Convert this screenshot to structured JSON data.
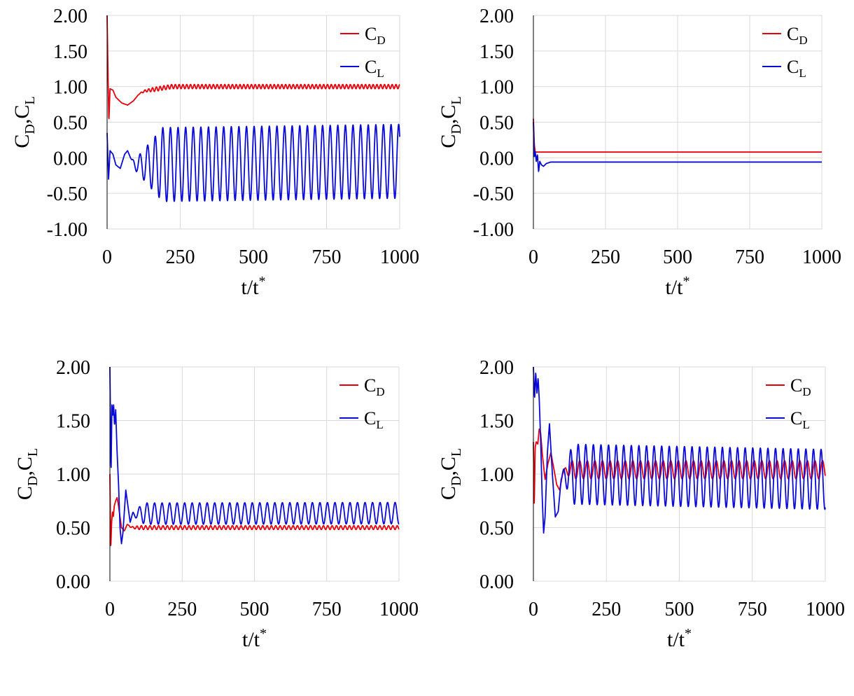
{
  "figure": {
    "colors": {
      "drag": "#e8000b",
      "lift": "#0a0ad8",
      "grid": "#d9d9d9",
      "axis": "#000000"
    }
  },
  "chart_data": [
    {
      "id": "top-left",
      "type": "line",
      "xlabel": {
        "main": "t/t",
        "sup": "*"
      },
      "ylabel": {
        "c1": "C",
        "s1": "D",
        "sep": ",",
        "c2": "C",
        "s2": "L"
      },
      "xlim": [
        0,
        1000
      ],
      "ylim": [
        -1.0,
        2.0
      ],
      "xticks": [
        "0",
        "250",
        "500",
        "750",
        "1000"
      ],
      "yticks": [
        "2.00",
        "1.50",
        "1.00",
        "0.50",
        "0.00",
        "-0.50",
        "-1.00"
      ],
      "legend_position": "top-right",
      "legend": [
        {
          "main": "C",
          "sub": "D"
        },
        {
          "main": "C",
          "sub": "L"
        }
      ],
      "series": [
        {
          "name": "CD",
          "points": [
            [
              0,
              2.0
            ],
            [
              3,
              1.2
            ],
            [
              6,
              0.5
            ],
            [
              10,
              0.97
            ],
            [
              20,
              0.95
            ],
            [
              30,
              0.85
            ],
            [
              50,
              0.77
            ],
            [
              70,
              0.74
            ],
            [
              90,
              0.8
            ],
            [
              110,
              0.9
            ],
            [
              130,
              0.94
            ],
            [
              160,
              0.96
            ],
            [
              190,
              0.98
            ],
            [
              220,
              1.0
            ],
            [
              250,
              1.0
            ],
            [
              1000,
              1.0
            ]
          ],
          "osc": {
            "start": 100,
            "period": 13,
            "amp": 0.03,
            "amp_ramp": 60
          }
        },
        {
          "name": "CL",
          "points": [
            [
              0,
              0.35
            ],
            [
              5,
              -0.3
            ],
            [
              10,
              0.1
            ],
            [
              20,
              0.05
            ],
            [
              30,
              -0.1
            ],
            [
              45,
              -0.15
            ],
            [
              60,
              0.05
            ],
            [
              70,
              0.1
            ],
            [
              85,
              -0.05
            ],
            [
              100,
              -0.1
            ],
            [
              1000,
              -0.05
            ]
          ],
          "osc": {
            "start": 80,
            "period": 26,
            "amp": 0.52,
            "amp_ramp": 110
          }
        }
      ]
    },
    {
      "id": "top-right",
      "type": "line",
      "xlabel": {
        "main": "t/t",
        "sup": "*"
      },
      "ylabel": {
        "c1": "C",
        "s1": "D",
        "sep": ",",
        "c2": "C",
        "s2": "L"
      },
      "xlim": [
        0,
        1000
      ],
      "ylim": [
        -1.0,
        2.0
      ],
      "xticks": [
        "0",
        "250",
        "500",
        "750",
        "1000"
      ],
      "yticks": [
        "2.00",
        "1.50",
        "1.00",
        "0.50",
        "0.00",
        "-0.50",
        "-1.00"
      ],
      "legend_position": "top-right",
      "legend": [
        {
          "main": "C",
          "sub": "D"
        },
        {
          "main": "C",
          "sub": "L"
        }
      ],
      "series": [
        {
          "name": "CD",
          "points": [
            [
              0,
              0.55
            ],
            [
              3,
              0.2
            ],
            [
              6,
              0.08
            ],
            [
              15,
              0.08
            ],
            [
              1000,
              0.08
            ]
          ]
        },
        {
          "name": "CL",
          "points": [
            [
              0,
              0.5
            ],
            [
              3,
              0.0
            ],
            [
              6,
              0.1
            ],
            [
              10,
              -0.05
            ],
            [
              14,
              0.05
            ],
            [
              18,
              -0.2
            ],
            [
              22,
              -0.05
            ],
            [
              28,
              -0.1
            ],
            [
              35,
              -0.12
            ],
            [
              45,
              -0.08
            ],
            [
              60,
              -0.06
            ],
            [
              100,
              -0.06
            ],
            [
              1000,
              -0.06
            ]
          ]
        }
      ]
    },
    {
      "id": "bottom-left",
      "type": "line",
      "xlabel": {
        "main": "t/t",
        "sup": "*"
      },
      "ylabel": {
        "c1": "C",
        "s1": "D",
        "sep": ",",
        "c2": "C",
        "s2": "L"
      },
      "xlim": [
        0,
        1000
      ],
      "ylim": [
        0.0,
        2.0
      ],
      "xticks": [
        "0",
        "250",
        "500",
        "750",
        "1000"
      ],
      "yticks": [
        "2.00",
        "1.50",
        "1.00",
        "0.50",
        "0.00"
      ],
      "legend_position": "top-right",
      "legend": [
        {
          "main": "C",
          "sub": "D"
        },
        {
          "main": "C",
          "sub": "L"
        }
      ],
      "series": [
        {
          "name": "CD",
          "points": [
            [
              0,
              1.0
            ],
            [
              3,
              0.3
            ],
            [
              6,
              0.55
            ],
            [
              9,
              0.65
            ],
            [
              12,
              0.6
            ],
            [
              15,
              0.7
            ],
            [
              20,
              0.75
            ],
            [
              25,
              0.78
            ],
            [
              30,
              0.7
            ],
            [
              40,
              0.5
            ],
            [
              50,
              0.47
            ],
            [
              60,
              0.53
            ],
            [
              70,
              0.51
            ],
            [
              80,
              0.5
            ],
            [
              1000,
              0.5
            ]
          ],
          "osc": {
            "start": 60,
            "period": 15,
            "amp": 0.018,
            "amp_ramp": 40
          }
        },
        {
          "name": "CL",
          "points": [
            [
              0,
              2.0
            ],
            [
              4,
              1.0
            ],
            [
              7,
              1.65
            ],
            [
              10,
              1.55
            ],
            [
              13,
              1.65
            ],
            [
              16,
              1.45
            ],
            [
              20,
              1.6
            ],
            [
              25,
              1.2
            ],
            [
              30,
              0.9
            ],
            [
              35,
              0.5
            ],
            [
              40,
              0.35
            ],
            [
              45,
              0.45
            ],
            [
              55,
              0.85
            ],
            [
              60,
              0.75
            ],
            [
              70,
              0.55
            ],
            [
              80,
              0.63
            ],
            [
              1000,
              0.635
            ]
          ],
          "osc": {
            "start": 70,
            "period": 26,
            "amp": 0.1,
            "amp_ramp": 50
          }
        }
      ]
    },
    {
      "id": "bottom-right",
      "type": "line",
      "xlabel": {
        "main": "t/t",
        "sup": "*"
      },
      "ylabel": {
        "c1": "C",
        "s1": "D",
        "sep": ",",
        "c2": "C",
        "s2": "L"
      },
      "xlim": [
        0,
        1000
      ],
      "ylim": [
        0.0,
        2.0
      ],
      "xticks": [
        "0",
        "250",
        "500",
        "750",
        "1000"
      ],
      "yticks": [
        "2.00",
        "1.50",
        "1.00",
        "0.50",
        "0.00"
      ],
      "legend_position": "top-right",
      "legend": [
        {
          "main": "C",
          "sub": "D"
        },
        {
          "main": "C",
          "sub": "L"
        }
      ],
      "series": [
        {
          "name": "CD",
          "points": [
            [
              0,
              1.3
            ],
            [
              3,
              0.7
            ],
            [
              6,
              1.25
            ],
            [
              10,
              1.3
            ],
            [
              15,
              1.28
            ],
            [
              20,
              1.42
            ],
            [
              25,
              1.38
            ],
            [
              30,
              1.2
            ],
            [
              40,
              0.95
            ],
            [
              50,
              1.1
            ],
            [
              60,
              1.2
            ],
            [
              70,
              1.05
            ],
            [
              80,
              0.9
            ],
            [
              90,
              0.85
            ],
            [
              100,
              1.0
            ],
            [
              110,
              1.04
            ],
            [
              1000,
              1.04
            ]
          ],
          "osc": {
            "start": 100,
            "period": 26,
            "amp": 0.085,
            "amp_ramp": 30
          }
        },
        {
          "name": "CL",
          "points": [
            [
              0,
              2.0
            ],
            [
              4,
              1.7
            ],
            [
              8,
              1.95
            ],
            [
              12,
              1.75
            ],
            [
              16,
              1.9
            ],
            [
              20,
              1.7
            ],
            [
              25,
              1.3
            ],
            [
              30,
              0.8
            ],
            [
              35,
              0.45
            ],
            [
              40,
              0.6
            ],
            [
              48,
              1.2
            ],
            [
              55,
              1.47
            ],
            [
              65,
              1.0
            ],
            [
              75,
              0.6
            ],
            [
              85,
              0.65
            ],
            [
              95,
              0.95
            ],
            [
              105,
              1.0
            ],
            [
              1000,
              0.95
            ]
          ],
          "osc": {
            "start": 95,
            "period": 26,
            "amp": 0.28,
            "amp_ramp": 40
          }
        }
      ]
    }
  ]
}
